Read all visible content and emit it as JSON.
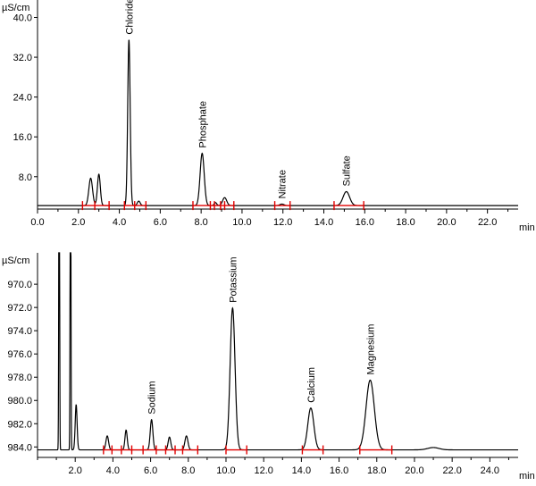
{
  "chart_data": [
    {
      "type": "line",
      "ylabel": "µS/cm",
      "xlabel": "min",
      "xlim": [
        0,
        23.5
      ],
      "ylim": [
        1.5,
        43.5
      ],
      "xticks": [
        "0.0",
        "2.0",
        "4.0",
        "6.0",
        "8.0",
        "10.0",
        "12.0",
        "14.0",
        "16.0",
        "18.0",
        "20.0",
        "22.0"
      ],
      "yticks": [
        "8.0",
        "16.0",
        "24.0",
        "32.0",
        "40.0"
      ],
      "baseline": 2.2,
      "peaks": [
        {
          "t": 2.6,
          "h": 5.5,
          "w": 0.09,
          "label": ""
        },
        {
          "t": 3.0,
          "h": 6.3,
          "w": 0.07,
          "label": ""
        },
        {
          "t": 4.47,
          "h": 33.3,
          "w": 0.06,
          "label": "Chloride"
        },
        {
          "t": 4.95,
          "h": 0.9,
          "w": 0.07,
          "label": ""
        },
        {
          "t": 8.05,
          "h": 10.5,
          "w": 0.1,
          "label": "Phosphate"
        },
        {
          "t": 8.7,
          "h": 0.6,
          "w": 0.06,
          "label": ""
        },
        {
          "t": 9.15,
          "h": 1.6,
          "w": 0.1,
          "label": ""
        },
        {
          "t": 11.95,
          "h": 0.3,
          "w": 0.1,
          "label": "Nitrate"
        },
        {
          "t": 15.1,
          "h": 2.8,
          "w": 0.16,
          "label": "Sulfate"
        }
      ],
      "integration_markers": [
        2.2,
        2.8,
        3.5,
        4.25,
        4.75,
        5.3,
        7.6,
        8.45,
        8.65,
        8.95,
        9.15,
        9.6,
        11.6,
        12.35,
        14.5,
        15.95
      ],
      "integration_segments": [
        [
          2.2,
          3.5
        ],
        [
          4.25,
          5.3
        ],
        [
          7.6,
          9.6
        ],
        [
          11.6,
          12.35
        ],
        [
          14.5,
          15.95
        ]
      ]
    },
    {
      "type": "line",
      "ylabel": "µS/cm",
      "xlabel": "min",
      "xlim": [
        0,
        25.5
      ],
      "ylim": [
        984.9,
        967.3
      ],
      "xticks": [
        "2.0",
        "4.0",
        "6.0",
        "8.0",
        "10.0",
        "12.0",
        "14.0",
        "16.0",
        "18.0",
        "20.0",
        "22.0",
        "24.0"
      ],
      "yticks": [
        "970.0",
        "972.0",
        "974.0",
        "976.0",
        "978.0",
        "980.0",
        "982.0",
        "984.0"
      ],
      "baseline": 984.25,
      "peaks": [
        {
          "t": 1.15,
          "h": -35.0,
          "w": 0.02,
          "label": ""
        },
        {
          "t": 1.75,
          "h": -35.0,
          "w": 0.02,
          "label": ""
        },
        {
          "t": 2.05,
          "h": -3.9,
          "w": 0.05,
          "label": ""
        },
        {
          "t": 3.7,
          "h": -1.2,
          "w": 0.07,
          "label": ""
        },
        {
          "t": 4.7,
          "h": -1.7,
          "w": 0.06,
          "label": ""
        },
        {
          "t": 6.05,
          "h": -2.6,
          "w": 0.07,
          "label": "Sodium"
        },
        {
          "t": 7.0,
          "h": -1.1,
          "w": 0.07,
          "label": ""
        },
        {
          "t": 7.9,
          "h": -1.2,
          "w": 0.08,
          "label": ""
        },
        {
          "t": 10.35,
          "h": -12.2,
          "w": 0.13,
          "label": "Potassium"
        },
        {
          "t": 14.5,
          "h": -3.6,
          "w": 0.16,
          "label": "Calcium"
        },
        {
          "t": 17.65,
          "h": -6.0,
          "w": 0.22,
          "label": "Magnesium"
        },
        {
          "t": 21.0,
          "h": -0.2,
          "w": 0.3,
          "label": ""
        }
      ],
      "integration_markers": [
        3.5,
        3.95,
        4.45,
        5.0,
        5.6,
        6.3,
        6.8,
        7.3,
        7.7,
        8.5,
        10.0,
        11.1,
        14.05,
        15.15,
        17.1,
        18.8
      ],
      "integration_segments": [
        [
          3.5,
          8.5
        ],
        [
          10.0,
          11.1
        ],
        [
          14.05,
          15.15
        ],
        [
          17.1,
          18.8
        ]
      ]
    }
  ]
}
